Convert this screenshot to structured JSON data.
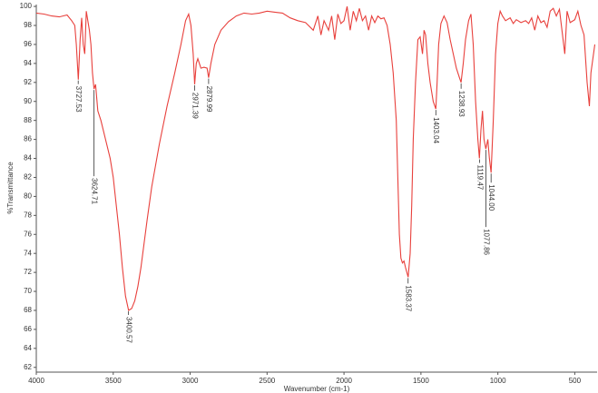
{
  "chart_data": {
    "type": "line",
    "y_label": "%Transmittance",
    "x_label": "Wavenumber (cm-1)",
    "xlim": [
      4000,
      355
    ],
    "ylim": [
      61.5,
      100.2
    ],
    "xticks": [
      4000,
      3500,
      3000,
      2500,
      2000,
      1500,
      1000,
      500
    ],
    "yticks": [
      62,
      64,
      66,
      68,
      70,
      72,
      74,
      76,
      78,
      80,
      82,
      84,
      86,
      88,
      90,
      92,
      94,
      96,
      98,
      100
    ],
    "color": "#e8403c",
    "x": [
      4000,
      3950,
      3900,
      3850,
      3800,
      3770,
      3750,
      3740,
      3727,
      3715,
      3705,
      3695,
      3685,
      3675,
      3665,
      3655,
      3645,
      3635,
      3625,
      3615,
      3600,
      3580,
      3550,
      3520,
      3500,
      3480,
      3460,
      3440,
      3420,
      3400,
      3380,
      3360,
      3340,
      3320,
      3300,
      3280,
      3250,
      3200,
      3150,
      3100,
      3060,
      3030,
      3010,
      2995,
      2980,
      2971,
      2960,
      2950,
      2930,
      2910,
      2890,
      2880,
      2865,
      2840,
      2800,
      2750,
      2700,
      2650,
      2600,
      2550,
      2500,
      2450,
      2400,
      2350,
      2300,
      2250,
      2200,
      2170,
      2150,
      2130,
      2100,
      2080,
      2060,
      2040,
      2020,
      2000,
      1980,
      1960,
      1940,
      1920,
      1900,
      1880,
      1860,
      1840,
      1820,
      1800,
      1780,
      1760,
      1740,
      1720,
      1700,
      1680,
      1660,
      1650,
      1640,
      1630,
      1620,
      1610,
      1600,
      1583,
      1570,
      1560,
      1550,
      1535,
      1520,
      1505,
      1490,
      1480,
      1470,
      1455,
      1440,
      1420,
      1403,
      1395,
      1385,
      1370,
      1350,
      1330,
      1310,
      1290,
      1270,
      1250,
      1239,
      1225,
      1210,
      1190,
      1175,
      1160,
      1145,
      1130,
      1120,
      1110,
      1100,
      1090,
      1078,
      1065,
      1055,
      1044,
      1030,
      1015,
      1000,
      985,
      970,
      950,
      920,
      900,
      880,
      850,
      820,
      800,
      780,
      760,
      740,
      720,
      700,
      680,
      660,
      640,
      620,
      600,
      580,
      565,
      550,
      530,
      500,
      480,
      460,
      440,
      420,
      405,
      395,
      370
    ],
    "values": [
      99.3,
      99.2,
      99.0,
      98.9,
      99.1,
      98.5,
      98.0,
      96,
      92.3,
      96.5,
      98.8,
      96,
      95,
      99.5,
      98.5,
      97.5,
      96,
      93,
      91.3,
      91.8,
      89,
      88,
      86,
      84,
      82,
      79,
      76,
      72.5,
      69.5,
      68,
      68.2,
      69,
      70.5,
      72.5,
      75,
      77.5,
      81,
      85.5,
      89.5,
      93,
      96,
      98.5,
      99.2,
      98,
      95,
      91.8,
      94,
      94.5,
      93.5,
      93.6,
      93.5,
      92.5,
      94,
      96,
      97.5,
      98.4,
      99,
      99.3,
      99.2,
      99.3,
      99.5,
      99.4,
      99.3,
      98.8,
      98.5,
      98.3,
      97.5,
      99.0,
      97.0,
      98.5,
      97.5,
      99,
      96.5,
      99.2,
      98.2,
      98.5,
      100,
      97.5,
      99.5,
      98.5,
      99.8,
      98.5,
      99,
      97.5,
      99,
      98.3,
      99,
      98.7,
      98.8,
      98,
      96,
      93,
      88,
      82,
      76,
      73.5,
      73,
      73.2,
      72.5,
      71.5,
      74,
      79,
      86,
      92,
      96.5,
      96.8,
      95,
      97.5,
      97,
      94,
      92,
      90,
      89.2,
      92,
      96,
      98.2,
      99,
      98.3,
      96.5,
      95,
      93.5,
      92.5,
      92,
      94,
      96.5,
      98.5,
      99.2,
      96,
      90,
      86,
      84,
      87,
      89,
      86,
      85,
      86,
      84,
      82.5,
      88,
      95,
      98.2,
      99.5,
      99,
      98.5,
      98.8,
      98.2,
      98.6,
      98.3,
      98.5,
      98.2,
      98.8,
      97.5,
      99,
      98.3,
      98.5,
      97.8,
      99.5,
      99.8,
      99,
      99.7,
      97,
      95,
      99.5,
      98.3,
      98.6,
      99.5,
      98,
      97,
      92,
      89.5,
      93,
      96
    ],
    "peaks": [
      {
        "x": 3727.53,
        "y": 92.3,
        "label": "3727.53"
      },
      {
        "x": 3624.71,
        "y": 91.3,
        "label": "3624.71"
      },
      {
        "x": 3400.57,
        "y": 68,
        "label": "3400.57"
      },
      {
        "x": 2971.39,
        "y": 91.8,
        "label": "2971.39"
      },
      {
        "x": 2879.99,
        "y": 92.5,
        "label": "2879.99"
      },
      {
        "x": 1583.37,
        "y": 71.5,
        "label": "1583.37"
      },
      {
        "x": 1403.04,
        "y": 89.2,
        "label": "1403.04"
      },
      {
        "x": 1238.93,
        "y": 92,
        "label": "1238.93"
      },
      {
        "x": 1119.47,
        "y": 84,
        "label": "1119.47"
      },
      {
        "x": 1077.86,
        "y": 85,
        "label": "1077.86"
      },
      {
        "x": 1044.0,
        "y": 82.5,
        "label": "1044.00"
      }
    ]
  }
}
